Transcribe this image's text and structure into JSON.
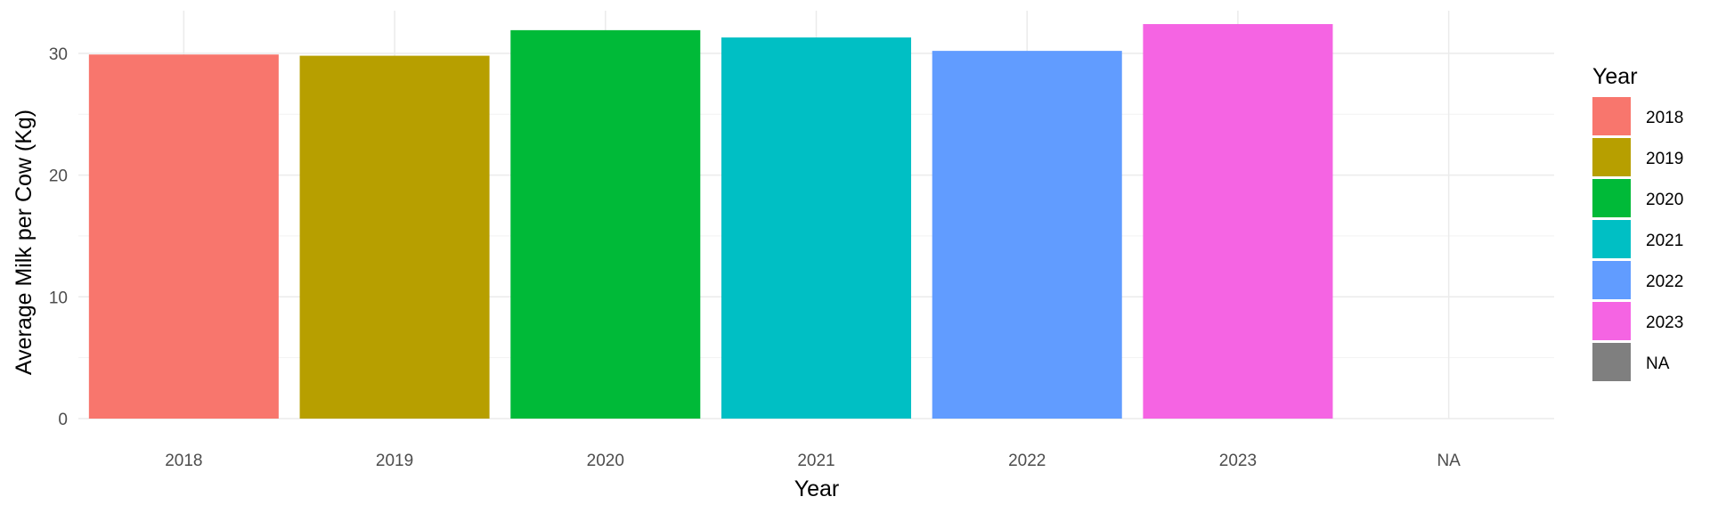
{
  "chart_data": {
    "type": "bar",
    "title": "",
    "xlabel": "Year",
    "ylabel": "Average Milk per Cow (Kg)",
    "categories": [
      "2018",
      "2019",
      "2020",
      "2021",
      "2022",
      "2023",
      "NA"
    ],
    "values": [
      29.9,
      29.8,
      31.9,
      31.3,
      30.2,
      32.4,
      null
    ],
    "ylim": [
      0,
      33.5
    ],
    "yticks": [
      0,
      10,
      20,
      30
    ],
    "grid": true,
    "legend": {
      "title": "Year",
      "position": "right",
      "items": [
        {
          "label": "2018",
          "color": "#F8766D"
        },
        {
          "label": "2019",
          "color": "#B79F00"
        },
        {
          "label": "2020",
          "color": "#00BA38"
        },
        {
          "label": "2021",
          "color": "#00BFC4"
        },
        {
          "label": "2022",
          "color": "#619CFF"
        },
        {
          "label": "2023",
          "color": "#F564E3"
        },
        {
          "label": "NA",
          "color": "#7F7F7F"
        }
      ]
    },
    "colors": [
      "#F8766D",
      "#B79F00",
      "#00BA38",
      "#00BFC4",
      "#619CFF",
      "#F564E3",
      "#7F7F7F"
    ]
  }
}
